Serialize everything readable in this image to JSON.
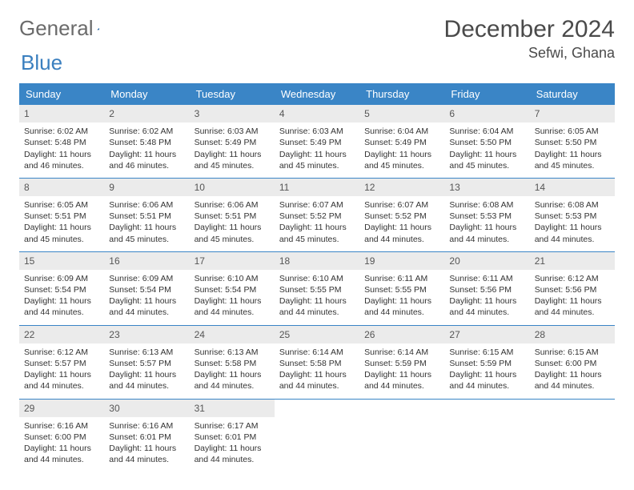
{
  "logo": {
    "word1": "General",
    "word2": "Blue"
  },
  "title": "December 2024",
  "location": "Sefwi, Ghana",
  "colors": {
    "header_bg": "#3a85c6",
    "header_text": "#ffffff",
    "daynum_bg": "#ebebeb",
    "rule": "#3a85c6",
    "text": "#333333",
    "logo_gray": "#6b6b6b",
    "logo_blue": "#3a7fbf"
  },
  "day_names": [
    "Sunday",
    "Monday",
    "Tuesday",
    "Wednesday",
    "Thursday",
    "Friday",
    "Saturday"
  ],
  "weeks": [
    [
      {
        "n": "1",
        "sunrise": "Sunrise: 6:02 AM",
        "sunset": "Sunset: 5:48 PM",
        "d1": "Daylight: 11 hours",
        "d2": "and 46 minutes."
      },
      {
        "n": "2",
        "sunrise": "Sunrise: 6:02 AM",
        "sunset": "Sunset: 5:48 PM",
        "d1": "Daylight: 11 hours",
        "d2": "and 46 minutes."
      },
      {
        "n": "3",
        "sunrise": "Sunrise: 6:03 AM",
        "sunset": "Sunset: 5:49 PM",
        "d1": "Daylight: 11 hours",
        "d2": "and 45 minutes."
      },
      {
        "n": "4",
        "sunrise": "Sunrise: 6:03 AM",
        "sunset": "Sunset: 5:49 PM",
        "d1": "Daylight: 11 hours",
        "d2": "and 45 minutes."
      },
      {
        "n": "5",
        "sunrise": "Sunrise: 6:04 AM",
        "sunset": "Sunset: 5:49 PM",
        "d1": "Daylight: 11 hours",
        "d2": "and 45 minutes."
      },
      {
        "n": "6",
        "sunrise": "Sunrise: 6:04 AM",
        "sunset": "Sunset: 5:50 PM",
        "d1": "Daylight: 11 hours",
        "d2": "and 45 minutes."
      },
      {
        "n": "7",
        "sunrise": "Sunrise: 6:05 AM",
        "sunset": "Sunset: 5:50 PM",
        "d1": "Daylight: 11 hours",
        "d2": "and 45 minutes."
      }
    ],
    [
      {
        "n": "8",
        "sunrise": "Sunrise: 6:05 AM",
        "sunset": "Sunset: 5:51 PM",
        "d1": "Daylight: 11 hours",
        "d2": "and 45 minutes."
      },
      {
        "n": "9",
        "sunrise": "Sunrise: 6:06 AM",
        "sunset": "Sunset: 5:51 PM",
        "d1": "Daylight: 11 hours",
        "d2": "and 45 minutes."
      },
      {
        "n": "10",
        "sunrise": "Sunrise: 6:06 AM",
        "sunset": "Sunset: 5:51 PM",
        "d1": "Daylight: 11 hours",
        "d2": "and 45 minutes."
      },
      {
        "n": "11",
        "sunrise": "Sunrise: 6:07 AM",
        "sunset": "Sunset: 5:52 PM",
        "d1": "Daylight: 11 hours",
        "d2": "and 45 minutes."
      },
      {
        "n": "12",
        "sunrise": "Sunrise: 6:07 AM",
        "sunset": "Sunset: 5:52 PM",
        "d1": "Daylight: 11 hours",
        "d2": "and 44 minutes."
      },
      {
        "n": "13",
        "sunrise": "Sunrise: 6:08 AM",
        "sunset": "Sunset: 5:53 PM",
        "d1": "Daylight: 11 hours",
        "d2": "and 44 minutes."
      },
      {
        "n": "14",
        "sunrise": "Sunrise: 6:08 AM",
        "sunset": "Sunset: 5:53 PM",
        "d1": "Daylight: 11 hours",
        "d2": "and 44 minutes."
      }
    ],
    [
      {
        "n": "15",
        "sunrise": "Sunrise: 6:09 AM",
        "sunset": "Sunset: 5:54 PM",
        "d1": "Daylight: 11 hours",
        "d2": "and 44 minutes."
      },
      {
        "n": "16",
        "sunrise": "Sunrise: 6:09 AM",
        "sunset": "Sunset: 5:54 PM",
        "d1": "Daylight: 11 hours",
        "d2": "and 44 minutes."
      },
      {
        "n": "17",
        "sunrise": "Sunrise: 6:10 AM",
        "sunset": "Sunset: 5:54 PM",
        "d1": "Daylight: 11 hours",
        "d2": "and 44 minutes."
      },
      {
        "n": "18",
        "sunrise": "Sunrise: 6:10 AM",
        "sunset": "Sunset: 5:55 PM",
        "d1": "Daylight: 11 hours",
        "d2": "and 44 minutes."
      },
      {
        "n": "19",
        "sunrise": "Sunrise: 6:11 AM",
        "sunset": "Sunset: 5:55 PM",
        "d1": "Daylight: 11 hours",
        "d2": "and 44 minutes."
      },
      {
        "n": "20",
        "sunrise": "Sunrise: 6:11 AM",
        "sunset": "Sunset: 5:56 PM",
        "d1": "Daylight: 11 hours",
        "d2": "and 44 minutes."
      },
      {
        "n": "21",
        "sunrise": "Sunrise: 6:12 AM",
        "sunset": "Sunset: 5:56 PM",
        "d1": "Daylight: 11 hours",
        "d2": "and 44 minutes."
      }
    ],
    [
      {
        "n": "22",
        "sunrise": "Sunrise: 6:12 AM",
        "sunset": "Sunset: 5:57 PM",
        "d1": "Daylight: 11 hours",
        "d2": "and 44 minutes."
      },
      {
        "n": "23",
        "sunrise": "Sunrise: 6:13 AM",
        "sunset": "Sunset: 5:57 PM",
        "d1": "Daylight: 11 hours",
        "d2": "and 44 minutes."
      },
      {
        "n": "24",
        "sunrise": "Sunrise: 6:13 AM",
        "sunset": "Sunset: 5:58 PM",
        "d1": "Daylight: 11 hours",
        "d2": "and 44 minutes."
      },
      {
        "n": "25",
        "sunrise": "Sunrise: 6:14 AM",
        "sunset": "Sunset: 5:58 PM",
        "d1": "Daylight: 11 hours",
        "d2": "and 44 minutes."
      },
      {
        "n": "26",
        "sunrise": "Sunrise: 6:14 AM",
        "sunset": "Sunset: 5:59 PM",
        "d1": "Daylight: 11 hours",
        "d2": "and 44 minutes."
      },
      {
        "n": "27",
        "sunrise": "Sunrise: 6:15 AM",
        "sunset": "Sunset: 5:59 PM",
        "d1": "Daylight: 11 hours",
        "d2": "and 44 minutes."
      },
      {
        "n": "28",
        "sunrise": "Sunrise: 6:15 AM",
        "sunset": "Sunset: 6:00 PM",
        "d1": "Daylight: 11 hours",
        "d2": "and 44 minutes."
      }
    ],
    [
      {
        "n": "29",
        "sunrise": "Sunrise: 6:16 AM",
        "sunset": "Sunset: 6:00 PM",
        "d1": "Daylight: 11 hours",
        "d2": "and 44 minutes."
      },
      {
        "n": "30",
        "sunrise": "Sunrise: 6:16 AM",
        "sunset": "Sunset: 6:01 PM",
        "d1": "Daylight: 11 hours",
        "d2": "and 44 minutes."
      },
      {
        "n": "31",
        "sunrise": "Sunrise: 6:17 AM",
        "sunset": "Sunset: 6:01 PM",
        "d1": "Daylight: 11 hours",
        "d2": "and 44 minutes."
      },
      null,
      null,
      null,
      null
    ]
  ]
}
